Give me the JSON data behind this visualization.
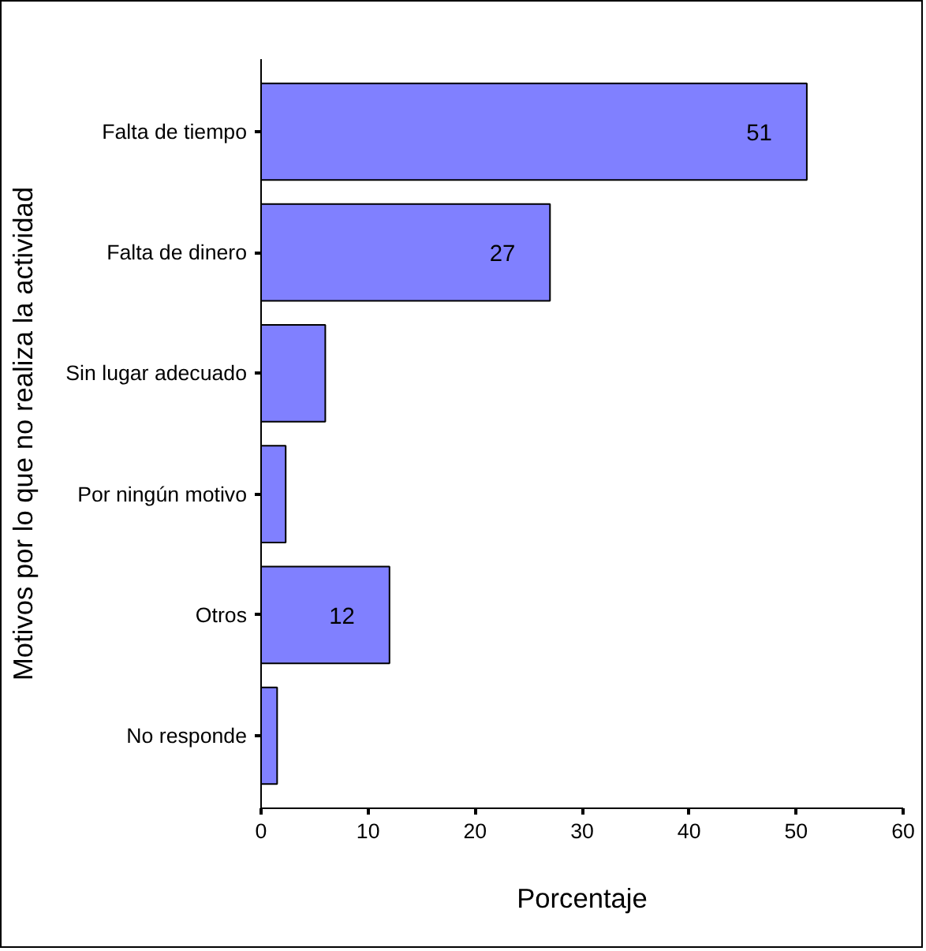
{
  "chart_data": {
    "type": "bar",
    "orientation": "horizontal",
    "xlabel": "Porcentaje",
    "ylabel": "Motivos por lo que no realiza la actividad",
    "categories": [
      "Falta de tiempo",
      "Falta de dinero",
      "Sin lugar adecuado",
      "Por ningún motivo",
      "Otros",
      "No responde"
    ],
    "values": [
      51,
      27,
      6,
      2.3,
      12,
      1.5
    ],
    "value_labels": [
      "51",
      "27",
      null,
      null,
      "12",
      null
    ],
    "color": "#8080ff",
    "xlim": [
      0,
      60
    ],
    "xticks": [
      0,
      10,
      20,
      30,
      40,
      50,
      60
    ],
    "grid": false
  }
}
